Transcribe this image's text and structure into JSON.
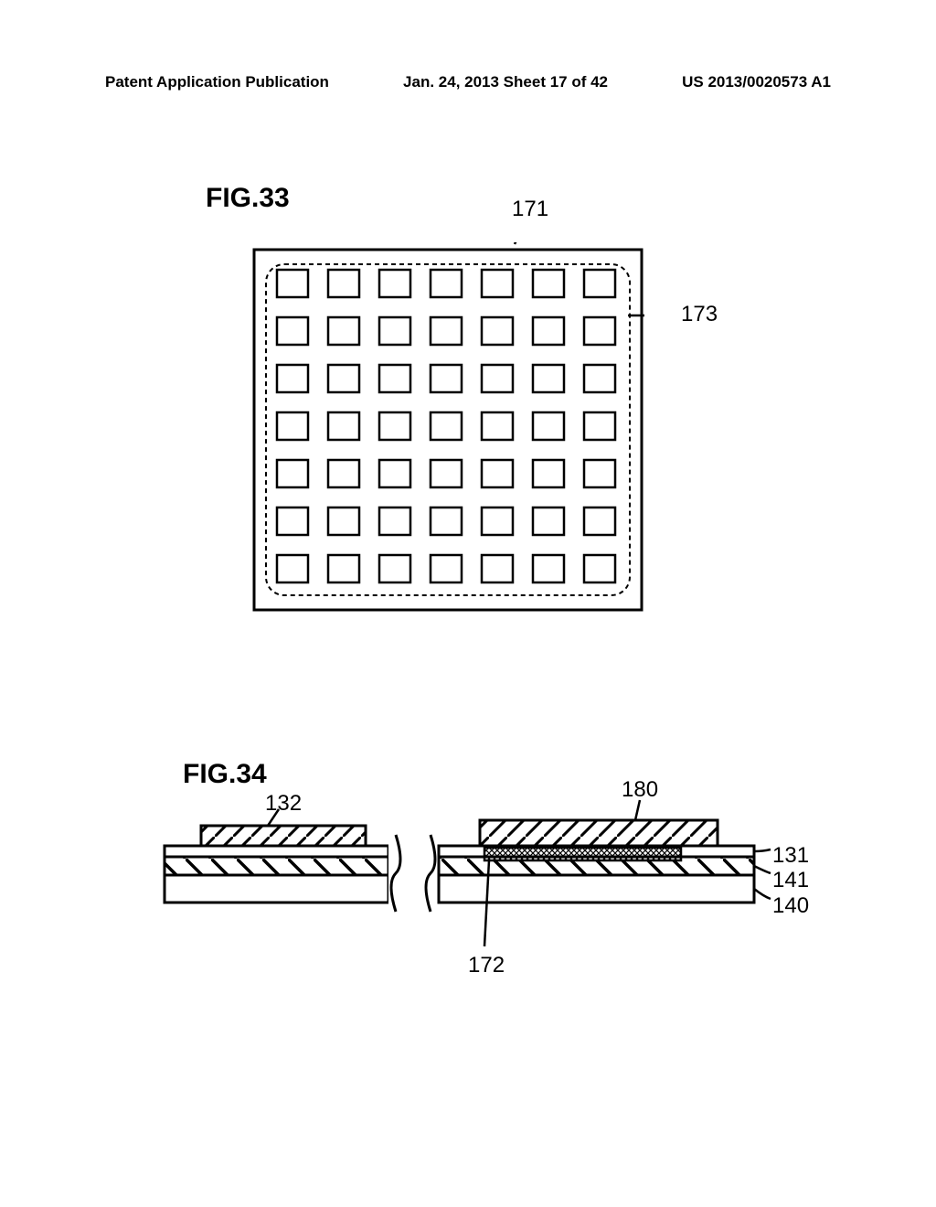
{
  "header": {
    "left": "Patent Application Publication",
    "mid": "Jan. 24, 2013  Sheet 17 of 42",
    "right": "US 2013/0020573 A1"
  },
  "fig33": {
    "title": "FIG.33",
    "labels": {
      "171": "171",
      "173": "173"
    },
    "grid": {
      "rows": 7,
      "cols": 7
    },
    "style": {
      "outer_stroke": "#000000",
      "outer_stroke_width": 3,
      "cell_stroke": "#000000",
      "cell_stroke_width": 2.5,
      "cell_fill": "#ffffff",
      "dash_stroke": "#000000",
      "dash_array": "5,4",
      "dash_radius": 18
    }
  },
  "fig34": {
    "title": "FIG.34",
    "labels": {
      "132": "132",
      "180": "180",
      "131": "131",
      "141": "141",
      "140": "140",
      "172": "172"
    },
    "style": {
      "stroke": "#000000",
      "stroke_width": 3,
      "hatch_angle_132": 60,
      "hatch_angle_141": -45,
      "hatch_angle_180": 60,
      "cross_spacing": 5
    }
  },
  "colors": {
    "background": "#ffffff",
    "text": "#000000"
  },
  "fontsize": {
    "header": 17,
    "fig_title": 30,
    "label": 24
  }
}
